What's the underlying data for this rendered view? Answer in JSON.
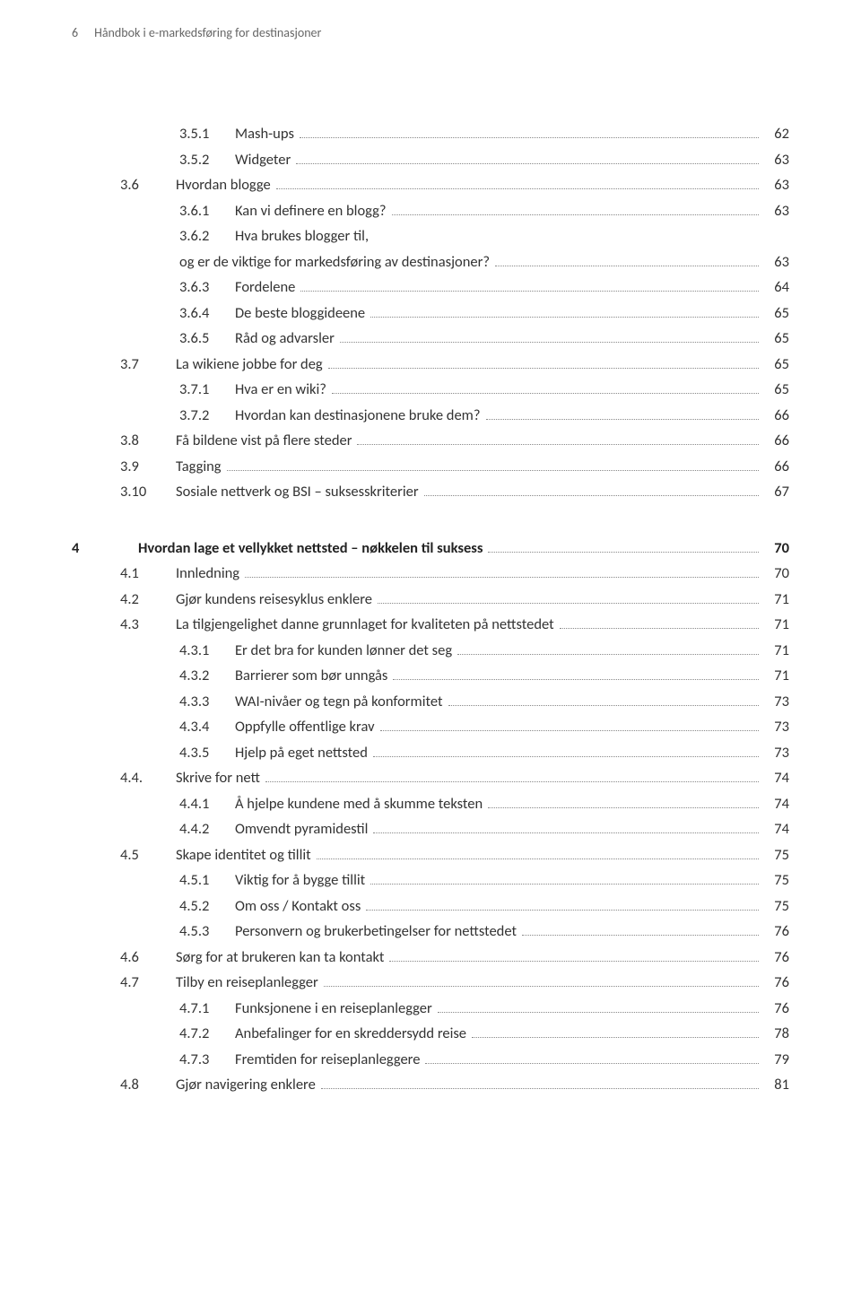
{
  "header": {
    "page_number": "6",
    "running_title": "Håndbok i e-markedsføring for destinasjoner"
  },
  "toc": [
    {
      "indent": 2,
      "num": "3.5.1",
      "text": "Mash-ups",
      "page": "62"
    },
    {
      "indent": 2,
      "num": "3.5.2",
      "text": "Widgeter",
      "page": "63"
    },
    {
      "indent": 1,
      "num": "3.6",
      "text": "Hvordan blogge",
      "page": "63"
    },
    {
      "indent": 2,
      "num": "3.6.1",
      "text": "Kan vi definere en blogg?",
      "page": "63"
    },
    {
      "indent": 2,
      "num": "3.6.2",
      "text": "Hva brukes blogger til,",
      "page": "",
      "no_leader": true
    },
    {
      "indent": 2,
      "num": "",
      "text": "og er de viktige for markedsføring av destinasjoner?",
      "page": "63",
      "no_num": true
    },
    {
      "indent": 2,
      "num": "3.6.3",
      "text": "Fordelene",
      "page": "64"
    },
    {
      "indent": 2,
      "num": "3.6.4",
      "text": "De beste bloggideene",
      "page": "65"
    },
    {
      "indent": 2,
      "num": "3.6.5",
      "text": "Råd og advarsler",
      "page": "65"
    },
    {
      "indent": 1,
      "num": "3.7",
      "text": "La wikiene jobbe for deg",
      "page": "65"
    },
    {
      "indent": 2,
      "num": "3.7.1",
      "text": "Hva er en wiki?",
      "page": "65"
    },
    {
      "indent": 2,
      "num": "3.7.2",
      "text": "Hvordan kan destinasjonene bruke dem?",
      "page": "66"
    },
    {
      "indent": 1,
      "num": "3.8",
      "text": "Få bildene vist på flere steder",
      "page": "66"
    },
    {
      "indent": 1,
      "num": "3.9",
      "text": "Tagging",
      "page": "66"
    },
    {
      "indent": 1,
      "num": "3.10",
      "text": "Sosiale nettverk og BSI – suksesskriterier",
      "page": "67",
      "tight_num": true
    },
    {
      "gap": true
    },
    {
      "indent": 0,
      "chap": "4",
      "num": "",
      "text": "Hvordan lage et vellykket nettsted – nøkkelen til suksess",
      "page": "70",
      "bold": true
    },
    {
      "indent": 1,
      "num": "4.1",
      "text": "Innledning",
      "page": "70"
    },
    {
      "indent": 1,
      "num": "4.2",
      "text": "Gjør kundens reisesyklus enklere",
      "page": "71"
    },
    {
      "indent": 1,
      "num": "4.3",
      "text": "La tilgjengelighet danne grunnlaget for kvaliteten på nettstedet",
      "page": "71"
    },
    {
      "indent": 2,
      "num": "4.3.1",
      "text": "Er det bra for kunden lønner det seg",
      "page": "71"
    },
    {
      "indent": 2,
      "num": "4.3.2",
      "text": "Barrierer som bør unngås",
      "page": "71"
    },
    {
      "indent": 2,
      "num": "4.3.3",
      "text": "WAI-nivåer og tegn på konformitet",
      "page": "73"
    },
    {
      "indent": 2,
      "num": "4.3.4",
      "text": "Oppfylle offentlige krav",
      "page": "73"
    },
    {
      "indent": 2,
      "num": "4.3.5",
      "text": "Hjelp på eget nettsted",
      "page": "73"
    },
    {
      "indent": 1,
      "num": "4.4.",
      "text": "Skrive for nett",
      "page": "74"
    },
    {
      "indent": 2,
      "num": "4.4.1",
      "text": "Å hjelpe kundene med å skumme teksten",
      "page": "74"
    },
    {
      "indent": 2,
      "num": "4.4.2",
      "text": "Omvendt pyramidestil",
      "page": "74"
    },
    {
      "indent": 1,
      "num": "4.5",
      "text": "Skape identitet og tillit",
      "page": "75"
    },
    {
      "indent": 2,
      "num": "4.5.1",
      "text": "Viktig for å bygge tillit",
      "page": "75"
    },
    {
      "indent": 2,
      "num": "4.5.2",
      "text": "Om oss / Kontakt oss",
      "page": "75"
    },
    {
      "indent": 2,
      "num": "4.5.3",
      "text": "Personvern og brukerbetingelser for nettstedet",
      "page": "76"
    },
    {
      "indent": 1,
      "num": "4.6",
      "text": "Sørg for at brukeren kan ta kontakt",
      "page": "76"
    },
    {
      "indent": 1,
      "num": "4.7",
      "text": "Tilby en reiseplanlegger",
      "page": "76"
    },
    {
      "indent": 2,
      "num": "4.7.1",
      "text": "Funksjonene i en reiseplanlegger",
      "page": "76"
    },
    {
      "indent": 2,
      "num": "4.7.2",
      "text": "Anbefalinger for en skreddersydd reise",
      "page": "78"
    },
    {
      "indent": 2,
      "num": "4.7.3",
      "text": "Fremtiden for reiseplanleggere",
      "page": "79"
    },
    {
      "indent": 1,
      "num": "4.8",
      "text": "Gjør navigering enklere",
      "page": "81"
    }
  ]
}
